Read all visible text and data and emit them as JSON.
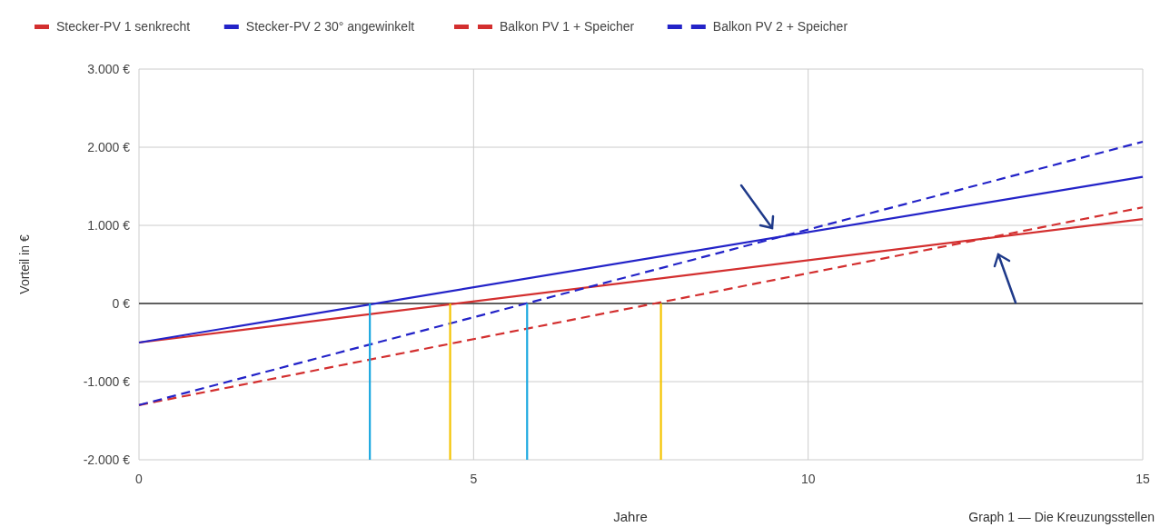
{
  "chart_data": {
    "type": "line",
    "xlabel": "Jahre",
    "ylabel": "Vorteil in €",
    "annotations": [
      "Graph 1 — Die Kreuzungsstellen"
    ],
    "xlim": [
      0,
      15
    ],
    "xticks": [
      0,
      5,
      10,
      15
    ],
    "ylim": [
      -2000,
      3000
    ],
    "yticks": [
      {
        "value": -2000,
        "label": "-2.000 €"
      },
      {
        "value": -1000,
        "label": "-1.000 €"
      },
      {
        "value": 0,
        "label": "0 €"
      },
      {
        "value": 1000,
        "label": "1.000 €"
      },
      {
        "value": 2000,
        "label": "2.000 €"
      },
      {
        "value": 3000,
        "label": "3.000 €"
      }
    ],
    "grid": true,
    "legend": "top",
    "ref_lines": [
      {
        "axis": "y",
        "value": 0,
        "color": "#333333"
      }
    ],
    "series": [
      {
        "name": "Stecker-PV 1 senkrecht",
        "color": "#d32f2f",
        "x": [
          0,
          15
        ],
        "values": [
          -500,
          1080
        ],
        "line_style": "solid"
      },
      {
        "name": "Stecker-PV 2 30° angewinkelt",
        "color": "#2323c8",
        "x": [
          0,
          15
        ],
        "values": [
          -500,
          1620
        ],
        "line_style": "solid"
      },
      {
        "name": "Balkon PV 1 + Speicher",
        "color": "#d32f2f",
        "x": [
          0,
          15
        ],
        "values": [
          -1300,
          1230
        ],
        "line_style": "dashed"
      },
      {
        "name": "Balkon PV 2 + Speicher",
        "color": "#2323c8",
        "x": [
          0,
          15
        ],
        "values": [
          -1300,
          2070
        ],
        "line_style": "dashed"
      },
      {
        "color": "#1ba8e0",
        "x": [
          3.45,
          3.45
        ],
        "values": [
          -2000,
          0
        ],
        "line_style": "solid"
      },
      {
        "color": "#f5c400",
        "x": [
          4.65,
          4.65
        ],
        "values": [
          -2000,
          0
        ],
        "line_style": "solid"
      },
      {
        "color": "#1ba8e0",
        "x": [
          5.8,
          5.8
        ],
        "values": [
          -2000,
          0
        ],
        "line_style": "solid"
      },
      {
        "color": "#f5c400",
        "x": [
          7.8,
          7.8
        ],
        "values": [
          -2000,
          0
        ],
        "line_style": "solid"
      }
    ]
  }
}
